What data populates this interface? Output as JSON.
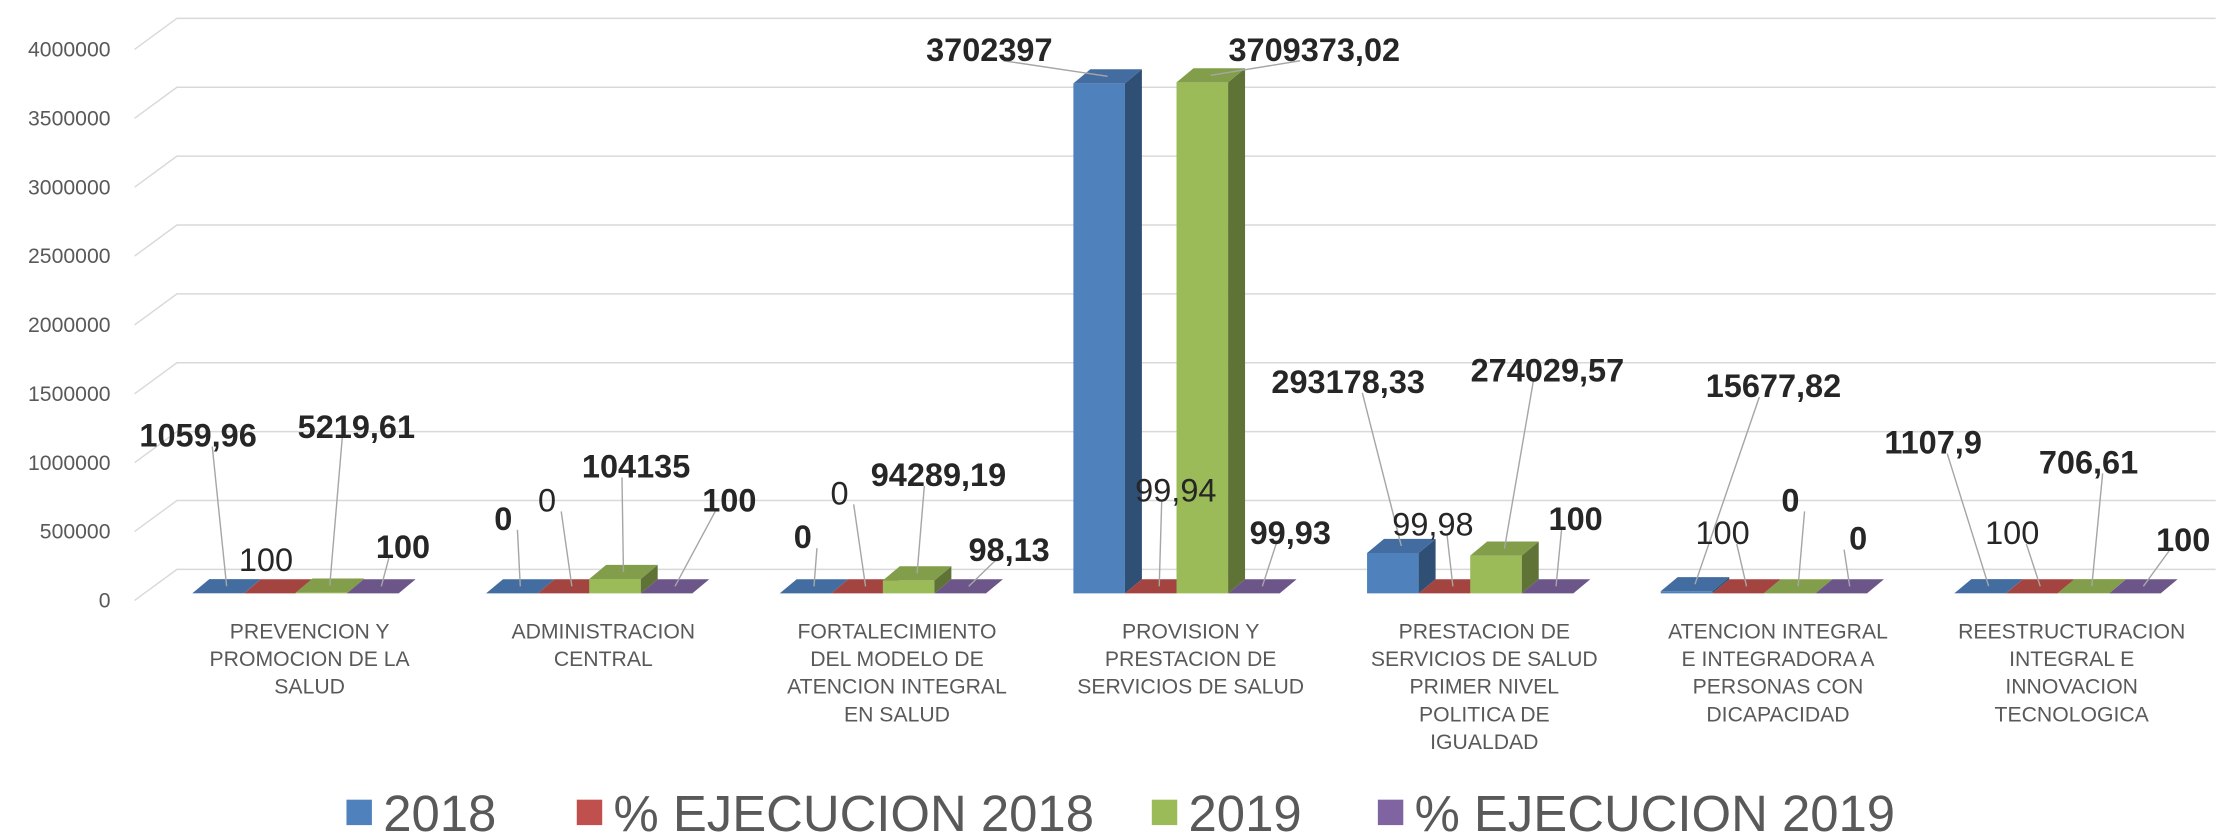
{
  "chart_data": {
    "type": "bar3d",
    "categories": [
      "PREVENCION Y PROMOCION DE LA SALUD",
      "ADMINISTRACION CENTRAL",
      "FORTALECIMIENTO DEL MODELO DE ATENCION INTEGRAL EN SALUD",
      "PROVISION Y PRESTACION DE SERVICIOS DE SALUD",
      "PRESTACION DE SERVICIOS DE SALUD PRIMER NIVEL POLITICA DE IGUALDAD",
      "ATENCION INTEGRAL E INTEGRADORA A PERSONAS CON DICAPACIDAD",
      "REESTRUCTURACION INTEGRAL E INNOVACION TECNOLOGICA"
    ],
    "series": [
      {
        "name": "2018",
        "color": "#4f81bd",
        "values": [
          1059.96,
          0,
          0,
          3702397,
          293178.33,
          15677.82,
          1107.9
        ],
        "value_labels": [
          "1059,96",
          "0",
          "0",
          "3702397",
          "293178,33",
          "15677,82",
          "1107,9"
        ]
      },
      {
        "name": "% EJECUCION 2018",
        "color": "#c0504d",
        "values": [
          100,
          0,
          0,
          99.94,
          99.98,
          100,
          100
        ],
        "value_labels": [
          "100",
          "0",
          "0",
          "99,94",
          "99,98",
          "100",
          "100"
        ]
      },
      {
        "name": "2019",
        "color": "#9bbb59",
        "values": [
          5219.61,
          104135,
          94289.19,
          3709373.02,
          274029.57,
          0,
          706.61
        ],
        "value_labels": [
          "5219,61",
          "104135",
          "94289,19",
          "3709373,02",
          "274029,57",
          "0",
          "706,61"
        ]
      },
      {
        "name": "% EJECUCION 2019",
        "color": "#8064a2",
        "values": [
          100,
          100,
          98.13,
          99.93,
          100,
          0,
          100
        ],
        "value_labels": [
          "100",
          "100",
          "98,13",
          "99,93",
          "100",
          "0",
          "100"
        ]
      }
    ],
    "ylim": [
      0,
      4000000
    ],
    "yticks": [
      0,
      500000,
      1000000,
      1500000,
      2000000,
      2500000,
      3000000,
      3500000,
      4000000
    ],
    "grid": true,
    "legend": "bottom"
  }
}
